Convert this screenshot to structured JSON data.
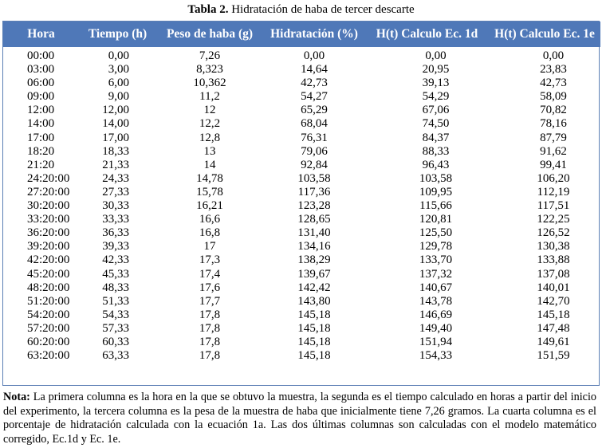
{
  "caption": {
    "label": "Tabla 2.",
    "text": "Hidratación de haba de tercer descarte"
  },
  "table": {
    "headers": [
      "Hora",
      "Tiempo (h)",
      "Peso de haba (g)",
      "Hidratación (%)",
      "H(t) Calculo Ec. 1d",
      "H(t) Calculo Ec. 1e"
    ],
    "rows": [
      [
        "00:00",
        "0,00",
        "7,26",
        "0,00",
        "0,00",
        "0,00"
      ],
      [
        "03:00",
        "3,00",
        "8,323",
        "14,64",
        "20,95",
        "23,83"
      ],
      [
        "06:00",
        "6,00",
        "10,362",
        "42,73",
        "39,13",
        "42,73"
      ],
      [
        "09:00",
        "9,00",
        "11,2",
        "54,27",
        "54,29",
        "58,09"
      ],
      [
        "12:00",
        "12,00",
        "12",
        "65,29",
        "67,06",
        "70,82"
      ],
      [
        "14:00",
        "14,00",
        "12,2",
        "68,04",
        "74,50",
        "78,16"
      ],
      [
        "17:00",
        "17,00",
        "12,8",
        "76,31",
        "84,37",
        "87,79"
      ],
      [
        "18:20",
        "18,33",
        "13",
        "79,06",
        "88,33",
        "91,62"
      ],
      [
        "21:20",
        "21,33",
        "14",
        "92,84",
        "96,43",
        "99,41"
      ],
      [
        "24:20:00",
        "24,33",
        "14,78",
        "103,58",
        "103,58",
        "106,20"
      ],
      [
        "27:20:00",
        "27,33",
        "15,78",
        "117,36",
        "109,95",
        "112,19"
      ],
      [
        "30:20:00",
        "30,33",
        "16,21",
        "123,28",
        "115,66",
        "117,51"
      ],
      [
        "33:20:00",
        "33,33",
        "16,6",
        "128,65",
        "120,81",
        "122,25"
      ],
      [
        "36:20:00",
        "36,33",
        "16,8",
        "131,40",
        "125,50",
        "126,52"
      ],
      [
        "39:20:00",
        "39,33",
        "17",
        "134,16",
        "129,78",
        "130,38"
      ],
      [
        "42:20:00",
        "42,33",
        "17,3",
        "138,29",
        "133,70",
        "133,88"
      ],
      [
        "45:20:00",
        "45,33",
        "17,4",
        "139,67",
        "137,32",
        "137,08"
      ],
      [
        "48:20:00",
        "48,33",
        "17,6",
        "142,42",
        "140,67",
        "140,01"
      ],
      [
        "51:20:00",
        "51,33",
        "17,7",
        "143,80",
        "143,78",
        "142,70"
      ],
      [
        "54:20:00",
        "54,33",
        "17,8",
        "145,18",
        "146,69",
        "145,18"
      ],
      [
        "57:20:00",
        "57,33",
        "17,8",
        "145,18",
        "149,40",
        "147,48"
      ],
      [
        "60:20:00",
        "60,33",
        "17,8",
        "145,18",
        "151,94",
        "149,61"
      ],
      [
        "63:20:00",
        "63,33",
        "17,8",
        "145,18",
        "154,33",
        "151,59"
      ]
    ]
  },
  "note": {
    "label": "Nota:",
    "text": "La primera columna es la hora en la que se obtuvo la muestra, la segunda es el tiempo calculado en horas a partir del inicio del experimento, la tercera columna es la pesa de la muestra de haba que inicialmente tiene 7,26 gramos. La cuarta columna es el porcentaje de hidratación calculada con la ecuación 1a. Las dos últimas columnas son calculadas con el modelo matemático corregido, Ec.1d y  Ec. 1e."
  },
  "colors": {
    "header_bg": "#4f78b8",
    "header_text": "#ffffff",
    "border": "#5c7fb5"
  }
}
